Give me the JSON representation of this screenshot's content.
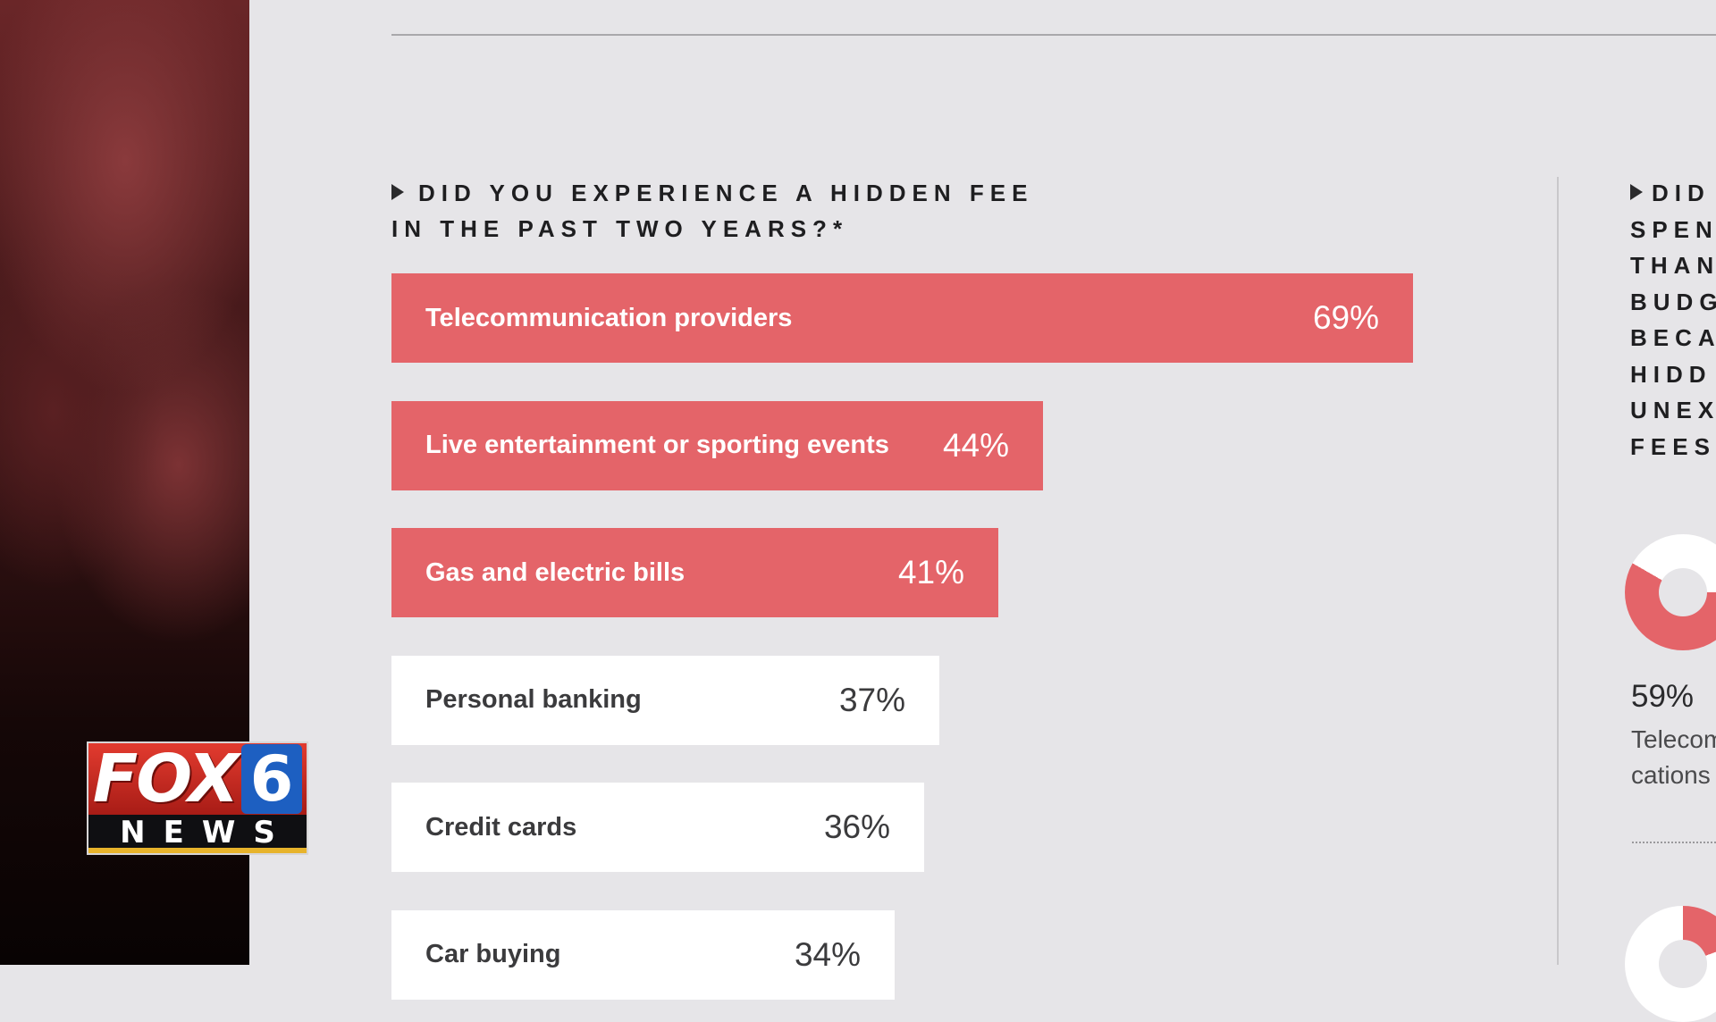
{
  "chart_data": {
    "type": "bar",
    "orientation": "horizontal",
    "title": "DID YOU EXPERIENCE A HIDDEN FEE IN THE PAST TWO YEARS?*",
    "title_lines": [
      "DID YOU EXPERIENCE A HIDDEN FEE",
      "IN THE PAST TWO YEARS?*"
    ],
    "categories": [
      "Telecommunication providers",
      "Live entertainment or sporting events",
      "Gas and electric bills",
      "Personal banking",
      "Credit cards",
      "Car buying"
    ],
    "values": [
      69,
      44,
      41,
      37,
      36,
      34
    ],
    "value_labels": [
      "69%",
      "44%",
      "41%",
      "37%",
      "36%",
      "34%"
    ],
    "highlighted": [
      true,
      true,
      true,
      false,
      false,
      false
    ],
    "unit": "%",
    "colors": {
      "highlight": "#e46469",
      "plain": "#ffffff"
    }
  },
  "side_panel": {
    "heading_lines": [
      "DID",
      "SPEN",
      "THAN",
      "BUDG",
      "BECA",
      "HIDD",
      "UNEX",
      "FEES?"
    ],
    "percent": "59%",
    "sub_lines": [
      "Telecom",
      "cations"
    ],
    "donut_color": "#e46469"
  },
  "logo": {
    "brand": "FOX",
    "number": "6",
    "sub": "NEWS"
  }
}
